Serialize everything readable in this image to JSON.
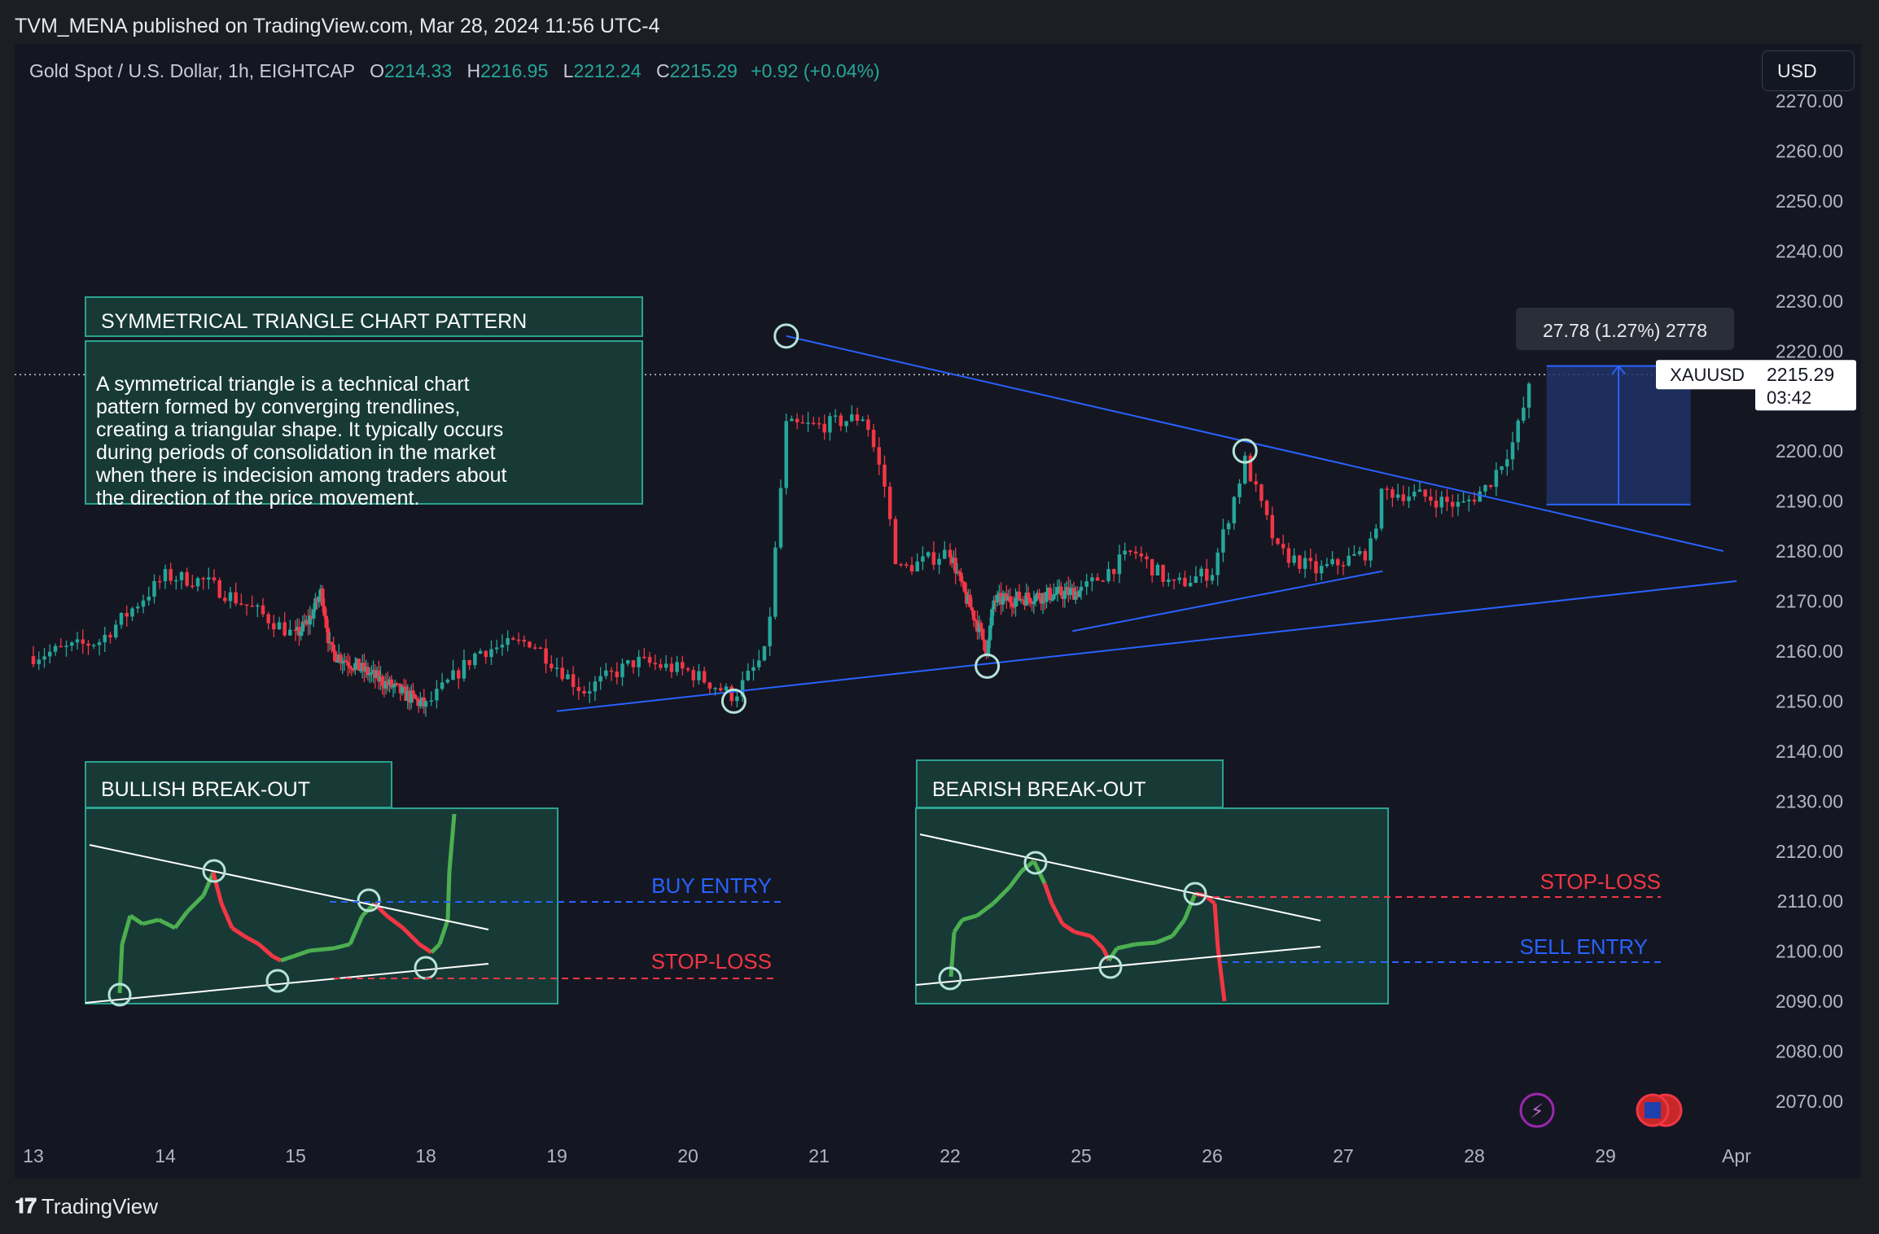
{
  "header": {
    "published": "TVM_MENA published on TradingView.com, Mar 28, 2024 11:56 UTC-4"
  },
  "legend": {
    "symbol": "Gold Spot / U.S. Dollar, 1h, EIGHTCAP",
    "o_key": "O",
    "o_val": "2214.33",
    "h_key": "H",
    "h_val": "2216.95",
    "l_key": "L",
    "l_val": "2212.24",
    "c_key": "C",
    "c_val": "2215.29",
    "change": "+0.92 (+0.04%)"
  },
  "currency": "USD",
  "price_tag": {
    "symbol": "XAUUSD",
    "price": "2215.29",
    "countdown": "03:42"
  },
  "measure_label": "27.78 (1.27%) 2778",
  "annotations": {
    "title": "SYMMETRICAL TRIANGLE CHART PATTERN",
    "description": "A symmetrical triangle is a technical chart\npattern formed by converging trendlines,\ncreating a triangular shape. It typically occurs\nduring periods of consolidation in the market\nwhen there is indecision among traders about\n the direction of the price movement.",
    "bullish_title": "BULLISH BREAK-OUT",
    "bearish_title": "BEARISH BREAK-OUT",
    "buy_entry": "BUY ENTRY",
    "stop_loss_bull": "STOP-LOSS",
    "stop_loss_bear": "STOP-LOSS",
    "sell_entry": "SELL ENTRY"
  },
  "footer": {
    "brand": "TradingView"
  },
  "colors": {
    "up": "#26a69a",
    "down": "#f23645",
    "trendline": "#2962ff",
    "box_fill": "#173a36",
    "box_border": "#2aa38f",
    "buy": "#2962ff",
    "stop": "#f23645"
  },
  "chart_data": {
    "type": "candlestick",
    "title": "Gold Spot / U.S. Dollar, 1h, EIGHTCAP",
    "xlabel": "",
    "ylabel": "",
    "x_ticks": [
      "13",
      "14",
      "15",
      "18",
      "19",
      "20",
      "21",
      "22",
      "25",
      "26",
      "27",
      "28",
      "29",
      "Apr"
    ],
    "y_ticks": [
      2070,
      2080,
      2090,
      2100,
      2110,
      2120,
      2130,
      2140,
      2150,
      2160,
      2170,
      2180,
      2190,
      2200,
      2210,
      2220,
      2230,
      2240,
      2250,
      2260,
      2270
    ],
    "ylim": [
      2063,
      2271
    ],
    "current_price": 2215.29,
    "price_path": [
      {
        "day": 13.0,
        "price": 2159
      },
      {
        "day": 13.5,
        "price": 2162
      },
      {
        "day": 14.0,
        "price": 2175
      },
      {
        "day": 14.3,
        "price": 2174
      },
      {
        "day": 14.7,
        "price": 2168
      },
      {
        "day": 15.0,
        "price": 2163
      },
      {
        "day": 15.3,
        "price": 2166
      },
      {
        "day": 15.6,
        "price": 2172
      },
      {
        "day": 15.8,
        "price": 2160
      },
      {
        "day": 18.0,
        "price": 2149
      },
      {
        "day": 18.4,
        "price": 2160
      },
      {
        "day": 18.8,
        "price": 2162
      },
      {
        "day": 19.2,
        "price": 2152
      },
      {
        "day": 19.6,
        "price": 2158
      },
      {
        "day": 20.0,
        "price": 2156
      },
      {
        "day": 20.35,
        "price": 2151
      },
      {
        "day": 20.6,
        "price": 2160
      },
      {
        "day": 20.75,
        "price": 2205
      },
      {
        "day": 21.0,
        "price": 2205
      },
      {
        "day": 21.35,
        "price": 2207
      },
      {
        "day": 21.5,
        "price": 2193
      },
      {
        "day": 21.6,
        "price": 2176
      },
      {
        "day": 22.0,
        "price": 2180
      },
      {
        "day": 22.3,
        "price": 2172
      },
      {
        "day": 22.6,
        "price": 2166
      },
      {
        "day": 22.85,
        "price": 2160
      },
      {
        "day": 23.0,
        "price": 2170
      },
      {
        "day": 25.0,
        "price": 2172
      },
      {
        "day": 25.4,
        "price": 2180
      },
      {
        "day": 25.7,
        "price": 2173
      },
      {
        "day": 26.0,
        "price": 2176
      },
      {
        "day": 26.25,
        "price": 2198
      },
      {
        "day": 26.5,
        "price": 2180
      },
      {
        "day": 26.8,
        "price": 2176
      },
      {
        "day": 27.2,
        "price": 2180
      },
      {
        "day": 27.3,
        "price": 2192
      },
      {
        "day": 27.6,
        "price": 2191
      },
      {
        "day": 27.9,
        "price": 2189
      },
      {
        "day": 28.1,
        "price": 2193
      },
      {
        "day": 28.3,
        "price": 2202
      },
      {
        "day": 28.45,
        "price": 2215.29
      }
    ],
    "trendlines": [
      {
        "name": "upper",
        "from": {
          "day": 20.75,
          "price": 2223
        },
        "to": {
          "day": 29.9,
          "price": 2180
        }
      },
      {
        "name": "lower",
        "from": {
          "day": 19.0,
          "price": 2148
        },
        "to": {
          "day": 30.05,
          "price": 2174
        }
      },
      {
        "name": "inner",
        "from": {
          "day": 24.8,
          "price": 2164
        },
        "to": {
          "day": 27.3,
          "price": 2176
        }
      }
    ],
    "pivots": [
      {
        "day": 20.35,
        "price": 2150
      },
      {
        "day": 20.75,
        "price": 2223
      },
      {
        "day": 22.85,
        "price": 2157
      },
      {
        "day": 26.25,
        "price": 2200
      }
    ],
    "measure": {
      "from_day": 28.55,
      "to_day": 29.65,
      "low": 2189.3,
      "high": 2217,
      "label": "27.78 (1.27%) 2778"
    }
  }
}
